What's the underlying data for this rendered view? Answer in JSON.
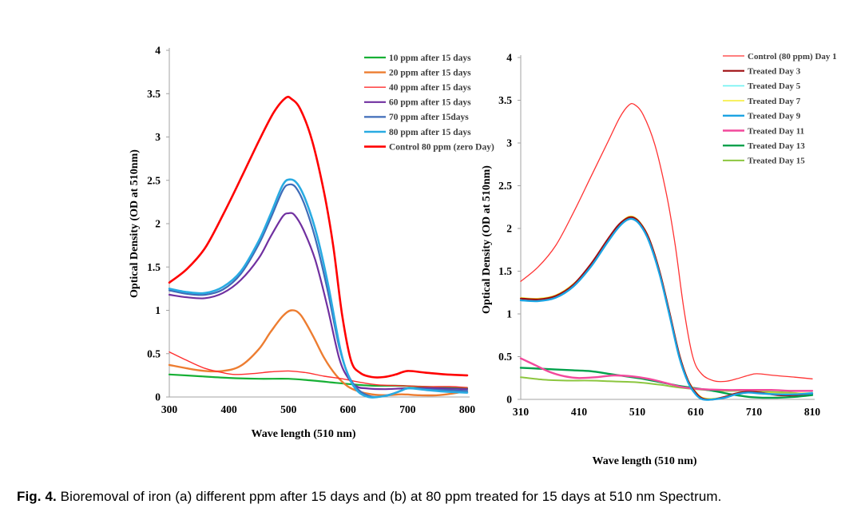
{
  "figure": {
    "caption_prefix": "Fig. 4.",
    "caption_text": " Bioremoval of iron (a) different ppm after 15 days and (b) at 80 ppm treated for 15 days at 510 nm Spectrum."
  },
  "chart_data": [
    {
      "panel": "a",
      "type": "line",
      "title": "",
      "xlabel": "Wave length (510 nm)",
      "ylabel": "Optical Density (OD at 510nm)",
      "xlim": [
        300,
        800
      ],
      "ylim": [
        0,
        4
      ],
      "xticks": [
        300,
        400,
        500,
        600,
        700,
        800
      ],
      "xtick_labels": [
        "300",
        "400",
        "500",
        "600",
        "700",
        "800"
      ],
      "yticks": [
        0,
        0.5,
        1,
        1.5,
        2,
        2.5,
        3,
        3.5,
        4
      ],
      "ytick_labels": [
        "0",
        "0.5",
        "1",
        "1.5",
        "2",
        "2.5",
        "3",
        "3.5",
        "4"
      ],
      "grid": false,
      "legend_position": "top-right",
      "draw_order": [
        0,
        1,
        2,
        3,
        4,
        5,
        6
      ],
      "series": [
        {
          "name": "10 ppm after 15 days",
          "color": "#17b035",
          "width": 2.2,
          "x": [
            300,
            350,
            400,
            450,
            500,
            540,
            570,
            600,
            640,
            680,
            720,
            760,
            800
          ],
          "y": [
            0.26,
            0.24,
            0.22,
            0.21,
            0.21,
            0.19,
            0.17,
            0.15,
            0.13,
            0.13,
            0.12,
            0.11,
            0.1
          ]
        },
        {
          "name": "20 ppm after 15 days",
          "color": "#ed7d31",
          "width": 2.4,
          "x": [
            300,
            330,
            360,
            390,
            420,
            450,
            470,
            490,
            505,
            520,
            540,
            560,
            580,
            600,
            620,
            640,
            665,
            690,
            720,
            750,
            775,
            800
          ],
          "y": [
            0.37,
            0.33,
            0.3,
            0.3,
            0.36,
            0.55,
            0.75,
            0.93,
            1.0,
            0.95,
            0.72,
            0.45,
            0.25,
            0.12,
            0.06,
            0.03,
            0.02,
            0.03,
            0.02,
            0.02,
            0.04,
            0.07
          ]
        },
        {
          "name": "40 ppm after 15 days",
          "color": "#ff2e2e",
          "width": 1.4,
          "x": [
            300,
            330,
            360,
            390,
            410,
            440,
            470,
            500,
            530,
            560,
            590,
            620,
            650,
            690,
            730,
            770,
            800
          ],
          "y": [
            0.52,
            0.42,
            0.33,
            0.28,
            0.26,
            0.27,
            0.29,
            0.3,
            0.28,
            0.24,
            0.21,
            0.17,
            0.14,
            0.13,
            0.12,
            0.12,
            0.11
          ]
        },
        {
          "name": "60 ppm after 15 days",
          "color": "#7030a0",
          "width": 2.2,
          "x": [
            300,
            330,
            360,
            390,
            420,
            450,
            470,
            490,
            500,
            510,
            525,
            545,
            565,
            585,
            600,
            615,
            630,
            660,
            700,
            750,
            800
          ],
          "y": [
            1.18,
            1.15,
            1.14,
            1.2,
            1.35,
            1.6,
            1.85,
            2.08,
            2.12,
            2.1,
            1.93,
            1.58,
            1.05,
            0.45,
            0.22,
            0.12,
            0.1,
            0.09,
            0.1,
            0.1,
            0.09
          ]
        },
        {
          "name": "70 ppm after 15days",
          "color": "#3f6cb8",
          "width": 2.2,
          "x": [
            300,
            330,
            360,
            390,
            420,
            450,
            470,
            490,
            500,
            512,
            527,
            545,
            565,
            585,
            600,
            615,
            632,
            648,
            665,
            685,
            700,
            730,
            765,
            800
          ],
          "y": [
            1.23,
            1.19,
            1.18,
            1.24,
            1.42,
            1.76,
            2.06,
            2.38,
            2.45,
            2.42,
            2.22,
            1.83,
            1.25,
            0.58,
            0.26,
            0.1,
            0.02,
            0.0,
            0.02,
            0.06,
            0.1,
            0.09,
            0.08,
            0.07
          ]
        },
        {
          "name": "80 ppm after 15 days",
          "color": "#29abe2",
          "width": 2.6,
          "x": [
            300,
            330,
            360,
            390,
            420,
            450,
            470,
            490,
            502,
            515,
            530,
            548,
            567,
            587,
            602,
            617,
            634,
            650,
            668,
            688,
            702,
            732,
            766,
            800
          ],
          "y": [
            1.25,
            1.21,
            1.2,
            1.27,
            1.45,
            1.8,
            2.11,
            2.44,
            2.51,
            2.46,
            2.25,
            1.86,
            1.28,
            0.55,
            0.22,
            0.06,
            0.0,
            0.0,
            0.02,
            0.07,
            0.1,
            0.08,
            0.06,
            0.05
          ]
        },
        {
          "name": "Control 80  ppm (zero Day)",
          "color": "#ff0000",
          "width": 2.6,
          "x": [
            300,
            330,
            360,
            390,
            420,
            450,
            475,
            495,
            505,
            520,
            540,
            560,
            575,
            590,
            605,
            620,
            640,
            660,
            680,
            700,
            730,
            765,
            800
          ],
          "y": [
            1.32,
            1.48,
            1.72,
            2.1,
            2.52,
            2.95,
            3.28,
            3.45,
            3.44,
            3.32,
            2.95,
            2.35,
            1.75,
            0.95,
            0.42,
            0.28,
            0.23,
            0.23,
            0.26,
            0.3,
            0.28,
            0.26,
            0.25
          ]
        }
      ]
    },
    {
      "panel": "b",
      "type": "line",
      "title": "",
      "xlabel": "Wave length (510 nm)",
      "ylabel": "Optical Density (OD at 510nm)",
      "xlim": [
        310,
        810
      ],
      "ylim": [
        0,
        4
      ],
      "xticks": [
        310,
        410,
        510,
        610,
        710,
        810
      ],
      "xtick_labels": [
        "310",
        "410",
        "510",
        "610",
        "710",
        "810"
      ],
      "yticks": [
        0,
        0.5,
        1,
        1.5,
        2,
        2.5,
        3,
        3.5,
        4
      ],
      "ytick_labels": [
        "0",
        "0.5",
        "1",
        "1.5",
        "2",
        "2.5",
        "3",
        "3.5",
        "4"
      ],
      "grid": false,
      "legend_position": "top-right",
      "draw_order": [
        7,
        6,
        5,
        3,
        2,
        1,
        4,
        0
      ],
      "series": [
        {
          "name": "Control (80 ppm) Day 1",
          "color": "#ff3333",
          "width": 1.3,
          "x": [
            310,
            340,
            370,
            400,
            430,
            460,
            480,
            495,
            505,
            520,
            540,
            560,
            575,
            590,
            605,
            620,
            640,
            660,
            680,
            700,
            715,
            745,
            780,
            810
          ],
          "y": [
            1.38,
            1.55,
            1.8,
            2.18,
            2.6,
            3.02,
            3.3,
            3.44,
            3.45,
            3.33,
            2.98,
            2.4,
            1.8,
            1.05,
            0.5,
            0.3,
            0.22,
            0.21,
            0.24,
            0.28,
            0.3,
            0.28,
            0.26,
            0.24
          ]
        },
        {
          "name": "Treated Day 3",
          "color": "#9e0b0f",
          "width": 2.2,
          "x": [
            310,
            340,
            370,
            400,
            430,
            455,
            475,
            490,
            502,
            515,
            530,
            548,
            565,
            582,
            597,
            610,
            622,
            640,
            660,
            680,
            700,
            720,
            750,
            780,
            810
          ],
          "y": [
            1.18,
            1.17,
            1.21,
            1.34,
            1.58,
            1.83,
            2.02,
            2.11,
            2.13,
            2.06,
            1.88,
            1.5,
            1.02,
            0.52,
            0.22,
            0.08,
            0.01,
            0.0,
            0.03,
            0.07,
            0.09,
            0.08,
            0.05,
            0.05,
            0.07
          ]
        },
        {
          "name": "Treated Day 5",
          "color": "#6ff2f2",
          "width": 1.6,
          "x": [
            310,
            340,
            370,
            400,
            430,
            455,
            475,
            490,
            502,
            515,
            530,
            548,
            565,
            582,
            597,
            610,
            622,
            640,
            660,
            680,
            700,
            720,
            750,
            780,
            810
          ],
          "y": [
            1.17,
            1.16,
            1.2,
            1.33,
            1.56,
            1.81,
            2.0,
            2.1,
            2.12,
            2.05,
            1.86,
            1.48,
            1.0,
            0.5,
            0.21,
            0.07,
            0.01,
            0.0,
            0.02,
            0.06,
            0.08,
            0.07,
            0.06,
            0.06,
            0.08
          ]
        },
        {
          "name": "Treated Day 7",
          "color": "#f6ee3c",
          "width": 1.6,
          "x": [
            310,
            340,
            370,
            400,
            430,
            455,
            475,
            490,
            502,
            515,
            530,
            548,
            565,
            582,
            597,
            610,
            622,
            640,
            660,
            680,
            700,
            720,
            750,
            780,
            810
          ],
          "y": [
            1.19,
            1.18,
            1.22,
            1.35,
            1.57,
            1.82,
            2.01,
            2.12,
            2.14,
            2.07,
            1.89,
            1.51,
            1.03,
            0.53,
            0.23,
            0.09,
            0.02,
            0.01,
            0.03,
            0.07,
            0.09,
            0.08,
            0.07,
            0.07,
            0.08
          ]
        },
        {
          "name": "Treated Day 9",
          "color": "#1ba3e2",
          "width": 2.4,
          "x": [
            310,
            340,
            370,
            400,
            430,
            455,
            475,
            490,
            502,
            515,
            530,
            548,
            565,
            582,
            597,
            610,
            622,
            640,
            660,
            680,
            700,
            720,
            750,
            780,
            810
          ],
          "y": [
            1.16,
            1.15,
            1.19,
            1.32,
            1.55,
            1.8,
            1.99,
            2.09,
            2.11,
            2.04,
            1.85,
            1.47,
            0.99,
            0.49,
            0.2,
            0.06,
            0.0,
            0.0,
            0.02,
            0.06,
            0.08,
            0.07,
            0.06,
            0.06,
            0.07
          ]
        },
        {
          "name": "Treated Day 11",
          "color": "#f2499c",
          "width": 2.4,
          "x": [
            310,
            335,
            360,
            385,
            410,
            440,
            470,
            500,
            530,
            560,
            590,
            620,
            660,
            700,
            740,
            775,
            810
          ],
          "y": [
            0.48,
            0.4,
            0.32,
            0.27,
            0.25,
            0.26,
            0.28,
            0.27,
            0.24,
            0.19,
            0.14,
            0.12,
            0.11,
            0.11,
            0.11,
            0.1,
            0.1
          ]
        },
        {
          "name": "Treated Day 13",
          "color": "#00a14b",
          "width": 2.4,
          "x": [
            310,
            340,
            370,
            400,
            430,
            460,
            490,
            520,
            550,
            580,
            610,
            640,
            670,
            700,
            725,
            750,
            780,
            810
          ],
          "y": [
            0.37,
            0.36,
            0.35,
            0.34,
            0.33,
            0.3,
            0.27,
            0.24,
            0.2,
            0.16,
            0.13,
            0.1,
            0.06,
            0.03,
            0.02,
            0.02,
            0.03,
            0.05
          ]
        },
        {
          "name": "Treated Day 15",
          "color": "#8cc63f",
          "width": 2.0,
          "x": [
            310,
            350,
            390,
            430,
            470,
            510,
            550,
            580,
            610,
            650,
            690,
            730,
            770,
            810
          ],
          "y": [
            0.26,
            0.23,
            0.22,
            0.22,
            0.21,
            0.2,
            0.17,
            0.14,
            0.12,
            0.1,
            0.1,
            0.09,
            0.08,
            0.06
          ]
        }
      ]
    }
  ]
}
